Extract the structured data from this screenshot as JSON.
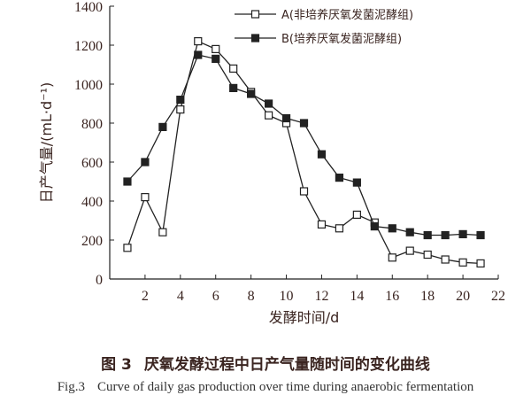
{
  "chart_data": {
    "type": "line",
    "xlabel": "发酵时间/d",
    "ylabel": "日产气量/(mL·d⁻¹)",
    "xlim": [
      0,
      22
    ],
    "ylim": [
      0,
      1400
    ],
    "x_ticks": [
      2,
      4,
      6,
      8,
      10,
      12,
      14,
      16,
      18,
      20,
      22
    ],
    "y_ticks": [
      0,
      200,
      400,
      600,
      800,
      1000,
      1200,
      1400
    ],
    "grid": false,
    "legend_position": "top-right",
    "x": [
      1,
      2,
      3,
      4,
      5,
      6,
      7,
      8,
      9,
      10,
      11,
      12,
      13,
      14,
      15,
      16,
      17,
      18,
      19,
      20,
      21
    ],
    "series": [
      {
        "name": "A(非培养厌氧发菌泥酵组)",
        "marker": "open-square",
        "values": [
          160,
          420,
          240,
          870,
          1220,
          1180,
          1080,
          960,
          840,
          800,
          450,
          280,
          260,
          330,
          290,
          110,
          145,
          125,
          100,
          85,
          80
        ]
      },
      {
        "name": "B(培养厌氧发菌泥酵组)",
        "marker": "filled-square",
        "values": [
          500,
          600,
          780,
          920,
          1150,
          1130,
          980,
          950,
          900,
          825,
          800,
          640,
          520,
          495,
          270,
          260,
          240,
          225,
          225,
          230,
          225
        ]
      }
    ]
  },
  "caption": {
    "cn_fig": "图 3",
    "cn_text": "厌氧发酵过程中日产气量随时间的变化曲线",
    "en_fig": "Fig.3",
    "en_text": "Curve of daily gas production over time during anaerobic fermentation"
  }
}
